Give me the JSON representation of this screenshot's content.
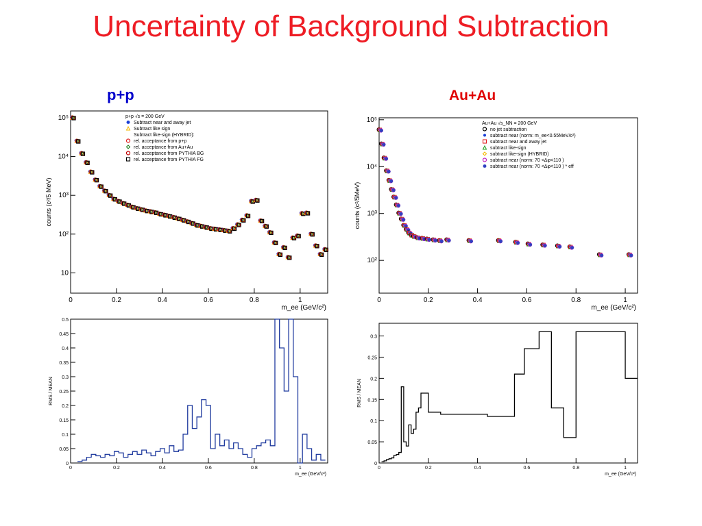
{
  "title": "Uncertainty of Background Subtraction",
  "labels": {
    "pp": "p+p",
    "auau": "Au+Au"
  },
  "chart_data": [
    {
      "id": "pp_top",
      "type": "scatter",
      "ylog": true,
      "ylabel": "counts (c²/5 MeV)",
      "xlabel": "m_ee (GeV/c²)",
      "xlim": [
        0,
        1.12
      ],
      "ylim": [
        3,
        150000
      ],
      "xticks": [
        0,
        0.2,
        0.4,
        0.6,
        0.8,
        1
      ],
      "xtick_labels": [
        "0",
        "0.2",
        "0.4",
        "0.6",
        "0.8",
        "1"
      ],
      "yticks": [
        10,
        100,
        1000,
        10000,
        100000
      ],
      "ytick_labels": [
        "10",
        "10²",
        "10³",
        "10⁴",
        "10⁵"
      ],
      "legend": {
        "placement": "top-center",
        "header": "p+p √s = 200 GeV",
        "entries": [
          {
            "label": "Subtract near and away jet",
            "marker": "star",
            "color": "#1a3fd6"
          },
          {
            "label": "Subtract like sign",
            "marker": "triangle",
            "color": "#f5b800"
          },
          {
            "label": "Subtract like-sign (HYBRID):",
            "marker": "none",
            "color": "#000000"
          },
          {
            "label": "rel. acceptance from p+p",
            "marker": "circle-open",
            "color": "#e02020"
          },
          {
            "label": "rel. acceptance from Au+Au",
            "marker": "diamond",
            "color": "#208020"
          },
          {
            "label": "rel. acceptance from PYTHIA BG",
            "marker": "circle-open",
            "color": "#c00000"
          },
          {
            "label": "rel. acceptance from PYTHIA FG",
            "marker": "square-open",
            "color": "#000000"
          }
        ]
      },
      "x": [
        0.01,
        0.03,
        0.05,
        0.07,
        0.09,
        0.11,
        0.13,
        0.15,
        0.17,
        0.19,
        0.21,
        0.23,
        0.25,
        0.27,
        0.29,
        0.31,
        0.33,
        0.35,
        0.37,
        0.39,
        0.41,
        0.43,
        0.45,
        0.47,
        0.49,
        0.51,
        0.53,
        0.55,
        0.57,
        0.59,
        0.61,
        0.63,
        0.65,
        0.67,
        0.69,
        0.71,
        0.73,
        0.75,
        0.77,
        0.79,
        0.81,
        0.83,
        0.85,
        0.87,
        0.89,
        0.91,
        0.93,
        0.95,
        0.97,
        0.99,
        1.01,
        1.03,
        1.05,
        1.07,
        1.09,
        1.11
      ],
      "y": [
        100000,
        25000,
        12000,
        7000,
        4000,
        2500,
        1700,
        1300,
        1000,
        800,
        700,
        620,
        560,
        500,
        460,
        430,
        400,
        380,
        360,
        330,
        310,
        290,
        270,
        250,
        230,
        210,
        190,
        170,
        160,
        150,
        140,
        135,
        130,
        125,
        120,
        140,
        175,
        230,
        300,
        700,
        750,
        220,
        160,
        110,
        60,
        30,
        45,
        25,
        80,
        90,
        340,
        350,
        100,
        50,
        30,
        40
      ],
      "y_err": [
        0,
        0,
        0,
        0,
        0,
        0,
        0,
        0,
        0,
        0,
        0,
        0,
        0,
        0,
        0,
        0,
        0,
        0,
        0,
        0,
        0,
        0,
        0,
        0,
        0,
        0,
        0,
        0,
        0,
        0,
        0,
        0,
        0,
        0,
        0,
        0,
        0,
        0,
        0,
        0,
        0,
        0,
        0,
        0,
        0,
        0,
        0,
        0,
        0,
        0,
        0,
        0,
        0,
        0,
        0,
        0
      ]
    },
    {
      "id": "pp_bottom",
      "type": "line",
      "style": "histogram",
      "color": "#1f3a9e",
      "ylabel": "RMS / MEAN",
      "xlabel": "m_ee (GeV/c²)",
      "xlim": [
        0,
        1.12
      ],
      "ylim": [
        0,
        0.5
      ],
      "xticks": [
        0,
        0.2,
        0.4,
        0.6,
        0.8,
        1
      ],
      "xtick_labels": [
        "0",
        "0.2",
        "0.4",
        "0.6",
        "0.8",
        "1"
      ],
      "yticks": [
        0,
        0.05,
        0.1,
        0.15,
        0.2,
        0.25,
        0.3,
        0.35,
        0.4,
        0.45,
        0.5
      ],
      "ytick_labels": [
        "0",
        "0.05",
        "0.1",
        "0.15",
        "0.2",
        "0.25",
        "0.3",
        "0.35",
        "0.4",
        "0.45",
        "0.5"
      ],
      "x": [
        0.04,
        0.06,
        0.08,
        0.1,
        0.12,
        0.14,
        0.16,
        0.18,
        0.2,
        0.22,
        0.24,
        0.26,
        0.28,
        0.3,
        0.32,
        0.34,
        0.36,
        0.38,
        0.4,
        0.42,
        0.44,
        0.46,
        0.48,
        0.5,
        0.52,
        0.54,
        0.56,
        0.58,
        0.6,
        0.62,
        0.64,
        0.66,
        0.68,
        0.7,
        0.72,
        0.74,
        0.76,
        0.78,
        0.8,
        0.82,
        0.84,
        0.86,
        0.88,
        0.9,
        0.92,
        0.94,
        0.96,
        0.98,
        1.0,
        1.02,
        1.04,
        1.06,
        1.08,
        1.1
      ],
      "y": [
        0.005,
        0.01,
        0.02,
        0.03,
        0.025,
        0.02,
        0.03,
        0.025,
        0.04,
        0.035,
        0.02,
        0.03,
        0.04,
        0.03,
        0.045,
        0.035,
        0.025,
        0.04,
        0.05,
        0.035,
        0.06,
        0.04,
        0.045,
        0.1,
        0.2,
        0.12,
        0.16,
        0.22,
        0.2,
        0.05,
        0.1,
        0.06,
        0.08,
        0.05,
        0.07,
        0.05,
        0.03,
        0.02,
        0.05,
        0.06,
        0.07,
        0.08,
        0.06,
        0.5,
        0.4,
        0.25,
        0.5,
        0.3,
        0.0,
        0.1,
        0.05,
        0.01,
        0.03,
        0.01
      ]
    },
    {
      "id": "au_top",
      "type": "scatter",
      "ylog": true,
      "ylabel": "counts (c²/5MeV)",
      "xlabel": "m_ee (GeV/c²)",
      "xlim": [
        0,
        1.05
      ],
      "ylim": [
        20,
        110000
      ],
      "xticks": [
        0,
        0.2,
        0.4,
        0.6,
        0.8,
        1
      ],
      "xtick_labels": [
        "0",
        "0.2",
        "0.4",
        "0.6",
        "0.8",
        "1"
      ],
      "yticks": [
        100,
        1000,
        10000,
        100000
      ],
      "ytick_labels": [
        "10²",
        "10³",
        "10⁴",
        "10⁵"
      ],
      "legend": {
        "placement": "top-right",
        "header": "Au+Au √s_NN = 200 GeV",
        "entries": [
          {
            "label": "no jet subtraction",
            "marker": "circle-open",
            "color": "#000000"
          },
          {
            "label": "subtract near (norm: m_ee<0.55MeV/c²)",
            "marker": "dot",
            "color": "#1a3fd6"
          },
          {
            "label": "subtract near and away jet",
            "marker": "square-open",
            "color": "#e02020"
          },
          {
            "label": "subtract like-sign",
            "marker": "triangle",
            "color": "#20a020"
          },
          {
            "label": "subtract like-sign (HYBRID)",
            "marker": "diamond",
            "color": "#f5b800"
          },
          {
            "label": "subtract near (norm: 70 <Δφ<110 )",
            "marker": "circle-open",
            "color": "#c020c0"
          },
          {
            "label": "subtract near (norm: 70 <Δφ<110 ) * eff",
            "marker": "star",
            "color": "#3040c0"
          }
        ]
      },
      "x": [
        0.005,
        0.015,
        0.025,
        0.035,
        0.045,
        0.055,
        0.065,
        0.075,
        0.085,
        0.095,
        0.105,
        0.115,
        0.125,
        0.135,
        0.145,
        0.16,
        0.18,
        0.2,
        0.225,
        0.25,
        0.28,
        0.37,
        0.49,
        0.56,
        0.61,
        0.67,
        0.73,
        0.78,
        0.9,
        1.02
      ],
      "y": [
        60000,
        30000,
        15000,
        8000,
        5000,
        3200,
        2200,
        1500,
        1000,
        750,
        550,
        450,
        380,
        340,
        320,
        300,
        290,
        280,
        270,
        260,
        270,
        260,
        260,
        240,
        220,
        210,
        200,
        190,
        130,
        130
      ],
      "y_err": [
        0,
        0,
        0,
        0,
        0,
        0,
        0,
        0,
        0,
        0,
        0,
        0,
        0,
        0,
        0,
        0,
        0,
        0,
        0,
        0,
        0,
        0,
        0,
        0,
        0,
        0,
        0,
        0,
        0,
        0
      ]
    },
    {
      "id": "au_bottom",
      "type": "line",
      "style": "histogram",
      "color": "#000000",
      "ylabel": "RMS / MEAN",
      "xlabel": "m_ee (GeV/c²)",
      "xlim": [
        0,
        1.05
      ],
      "ylim": [
        0,
        0.33
      ],
      "xticks": [
        0,
        0.2,
        0.4,
        0.6,
        0.8,
        1
      ],
      "xtick_labels": [
        "0",
        "0.2",
        "0.4",
        "0.6",
        "0.8",
        "1"
      ],
      "yticks": [
        0,
        0.05,
        0.1,
        0.15,
        0.2,
        0.25,
        0.3
      ],
      "ytick_labels": [
        "0",
        "0.05",
        "0.1",
        "0.15",
        "0.2",
        "0.25",
        "0.3"
      ],
      "edges": [
        0.01,
        0.02,
        0.03,
        0.04,
        0.05,
        0.06,
        0.07,
        0.08,
        0.09,
        0.1,
        0.11,
        0.12,
        0.13,
        0.14,
        0.15,
        0.16,
        0.17,
        0.2,
        0.22,
        0.25,
        0.44,
        0.55,
        0.59,
        0.65,
        0.7,
        0.75,
        0.8,
        1.0,
        1.05
      ],
      "y": [
        0.003,
        0.005,
        0.008,
        0.01,
        0.012,
        0.018,
        0.02,
        0.025,
        0.18,
        0.05,
        0.04,
        0.09,
        0.07,
        0.08,
        0.12,
        0.13,
        0.165,
        0.12,
        0.12,
        0.115,
        0.11,
        0.21,
        0.27,
        0.31,
        0.13,
        0.06,
        0.31,
        0.2
      ]
    }
  ]
}
